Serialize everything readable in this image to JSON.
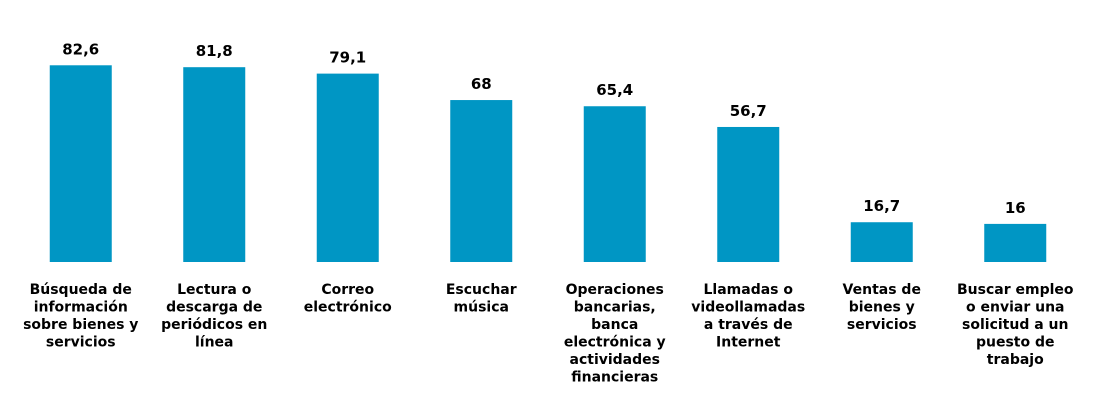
{
  "chart_data": {
    "type": "bar",
    "categories": [
      [
        "Búsqueda de",
        "información",
        "sobre bienes y",
        "servicios"
      ],
      [
        "Lectura o",
        "descarga de",
        "periódicos en",
        "línea"
      ],
      [
        "Correo",
        "electrónico"
      ],
      [
        "Escuchar",
        "música"
      ],
      [
        "Operaciones",
        "bancarias,",
        "banca",
        "electrónica y",
        "actividades",
        "financieras"
      ],
      [
        "Llamadas o",
        "videollamadas",
        "a través de",
        "Internet"
      ],
      [
        "Ventas de",
        "bienes y",
        "servicios"
      ],
      [
        "Buscar empleo",
        "o enviar una",
        "solicitud a un",
        "puesto de",
        "trabajo"
      ]
    ],
    "values": [
      82.6,
      81.8,
      79.1,
      68,
      65.4,
      56.7,
      16.7,
      16
    ],
    "value_labels": [
      "82,6",
      "81,8",
      "79,1",
      "68",
      "65,4",
      "56,7",
      "16,7",
      "16"
    ],
    "ylim": [
      0,
      100
    ],
    "bar_color": "#0096c4",
    "grid": false,
    "legend": false
  }
}
